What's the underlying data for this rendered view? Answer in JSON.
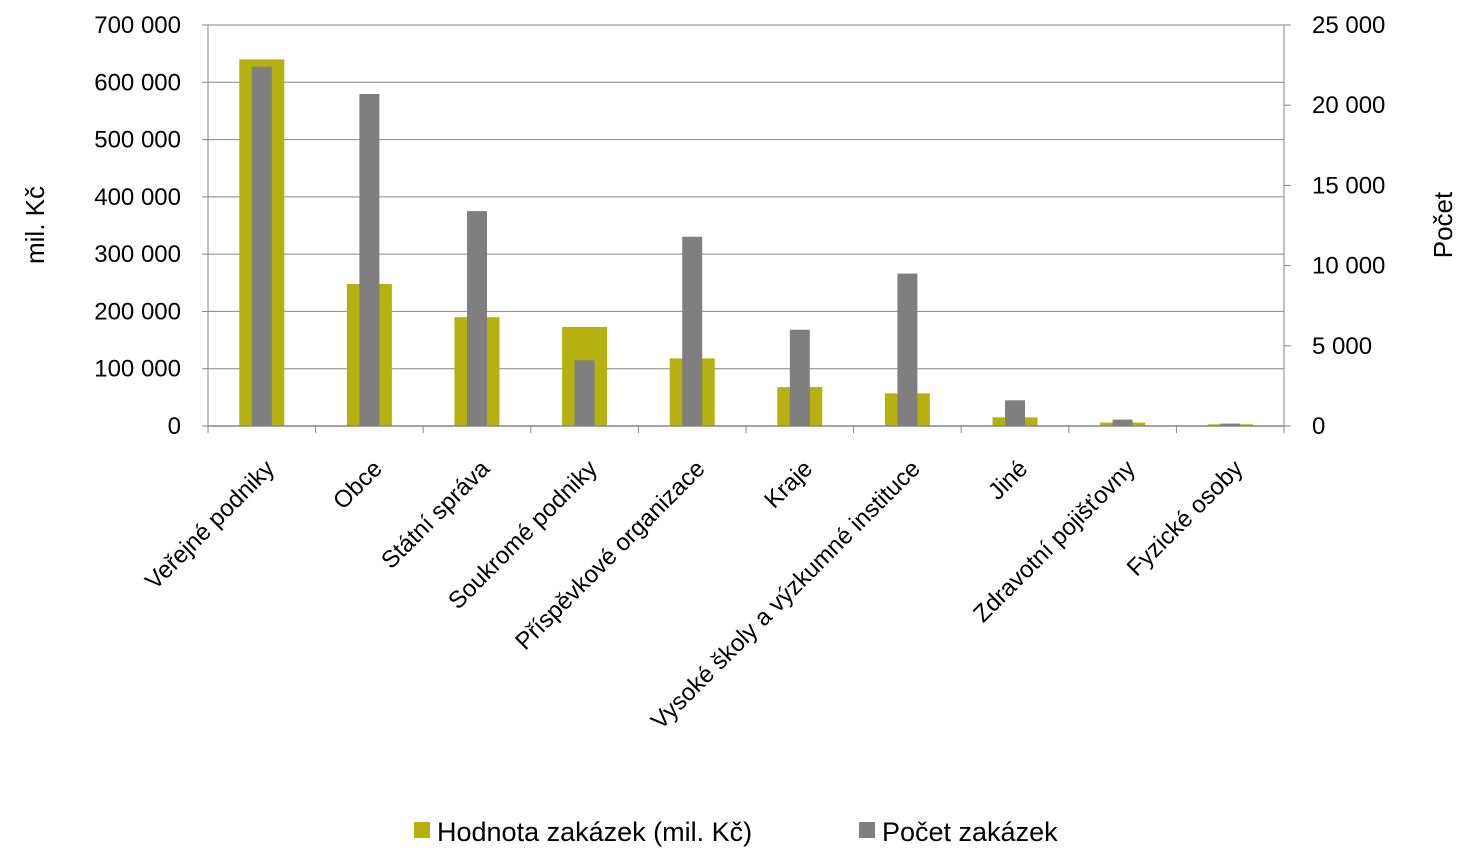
{
  "chart_data": {
    "type": "bar",
    "categories": [
      "Veřejné podniky",
      "Obce",
      "Státní správa",
      "Soukromé podniky",
      "Příspěvkové organizace",
      "Kraje",
      "Vysoké školy a výzkumné instituce",
      "Jiné",
      "Zdravotní pojišťovny",
      "Fyzické osoby"
    ],
    "series": [
      {
        "name": "Hodnota zakázek (mil. Kč)",
        "axis": "left",
        "color": "#b5b111",
        "values": [
          640000,
          248000,
          190000,
          173000,
          118000,
          68000,
          57000,
          15000,
          6000,
          3000
        ]
      },
      {
        "name": "Počet zakázek",
        "axis": "right",
        "color": "#7f7f7f",
        "values": [
          22400,
          20700,
          13400,
          4100,
          11800,
          6000,
          9500,
          1600,
          400,
          150
        ]
      }
    ],
    "ylabel": "mil. Kč",
    "ylabel_right": "Počet",
    "ylim": [
      0,
      700000
    ],
    "ylim_right": [
      0,
      25000
    ],
    "yticks": [
      "0",
      "100 000",
      "200 000",
      "300 000",
      "400 000",
      "500 000",
      "600 000",
      "700 000"
    ],
    "yticks_right": [
      "0",
      "5 000",
      "10 000",
      "15 000",
      "20 000",
      "25 000"
    ],
    "grid": true,
    "legend_position": "bottom"
  }
}
